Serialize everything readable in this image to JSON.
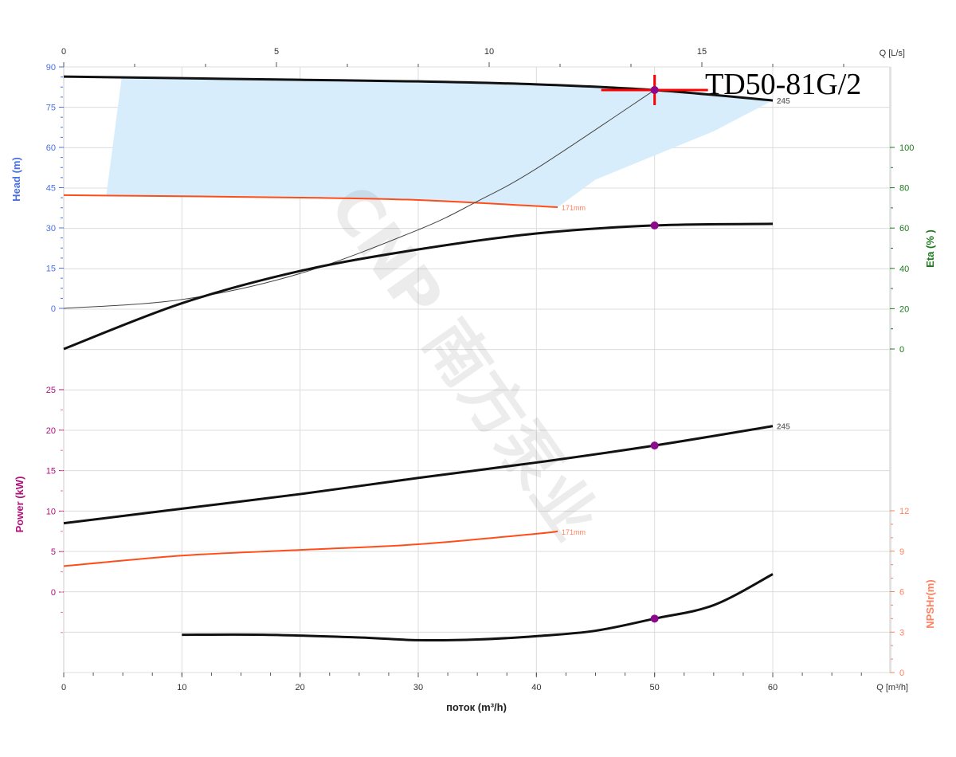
{
  "title": "TD50-81G/2",
  "watermark": "CNP 南方泵业",
  "colors": {
    "head": "#4a6fe3",
    "eta": "#1a7a1a",
    "power": "#b0107a",
    "npsh": "#ff7f5f",
    "curve171": "#ff4d1a",
    "region": "#d6ecfb",
    "op": "#8b0a8b",
    "cross": "#ff0000"
  },
  "chart_data": {
    "type": "line",
    "title": "TD50-81G/2",
    "xlabel": "поток (m³/h)",
    "x_unit_label": "Q [m³/h]",
    "x_top_label": "Q [L/s]",
    "xlim": [
      0,
      70
    ],
    "x_ticks": [
      0,
      10,
      20,
      30,
      40,
      50,
      60
    ],
    "x_top_ticks": [
      0,
      5,
      10,
      15
    ],
    "grid": true,
    "axes": {
      "head": {
        "label": "Head (m)",
        "ticks": [
          0,
          15,
          30,
          45,
          60,
          75,
          90
        ]
      },
      "eta": {
        "label": "Eta (% )",
        "ticks": [
          0,
          20,
          40,
          60,
          80,
          100
        ]
      },
      "power": {
        "label": "Power (kW)",
        "ticks": [
          0,
          5,
          10,
          15,
          20,
          25
        ]
      },
      "npsh": {
        "label": "NPSHr(m)",
        "ticks": [
          0,
          3,
          6,
          9,
          12
        ]
      }
    },
    "series": [
      {
        "name": "245",
        "axis": "head",
        "x": [
          0,
          10,
          20,
          30,
          40,
          50,
          60
        ],
        "y": [
          86.4,
          85.8,
          85.2,
          84.6,
          83.5,
          81.4,
          77.5
        ]
      },
      {
        "name": "171mm",
        "axis": "head",
        "x": [
          0,
          10,
          20,
          30,
          41.8
        ],
        "y": [
          42.2,
          41.8,
          41.3,
          40.4,
          37.7
        ]
      },
      {
        "axis": "head",
        "kind": "system",
        "x": [
          0,
          10,
          20,
          30,
          35,
          40,
          50
        ],
        "y": [
          0,
          3.3,
          13.0,
          29.3,
          39.9,
          52.1,
          81.4
        ]
      },
      {
        "axis": "eta",
        "x": [
          0,
          10,
          20,
          30,
          40,
          50,
          60
        ],
        "y": [
          0,
          22.7,
          38.7,
          49.4,
          57.3,
          61.3,
          62.1
        ]
      },
      {
        "name": "245",
        "axis": "power",
        "x": [
          0,
          10,
          20,
          30,
          40,
          50,
          60
        ],
        "y": [
          8.5,
          10.3,
          12.1,
          14.1,
          16.0,
          18.1,
          20.5
        ]
      },
      {
        "name": "171mm",
        "axis": "power",
        "x": [
          0,
          10,
          20,
          30,
          40,
          41.8
        ],
        "y": [
          3.2,
          4.5,
          5.2,
          5.9,
          7.2,
          7.5
        ]
      },
      {
        "axis": "npsh",
        "x": [
          10,
          17,
          25,
          30,
          35,
          40,
          45,
          50,
          55,
          60
        ],
        "y": [
          2.8,
          2.8,
          2.6,
          2.4,
          2.45,
          2.7,
          3.1,
          4.0,
          5.0,
          7.3
        ]
      }
    ],
    "operating_point": {
      "q": 50,
      "head": 81.4,
      "eta": 61.3,
      "power": 18.1,
      "npsh": 4.0
    },
    "operating_region": {
      "top": [
        [
          4.9,
          85.9
        ],
        [
          20,
          85.2
        ],
        [
          30,
          84.6
        ],
        [
          40,
          83.5
        ],
        [
          50,
          81.4
        ],
        [
          60,
          77.5
        ]
      ],
      "bottom": [
        [
          60,
          77.5
        ],
        [
          55,
          66
        ],
        [
          50,
          57
        ],
        [
          45,
          48
        ],
        [
          41.8,
          37.7
        ],
        [
          30,
          40.4
        ],
        [
          20,
          41.3
        ],
        [
          3.6,
          42.1
        ]
      ]
    }
  }
}
